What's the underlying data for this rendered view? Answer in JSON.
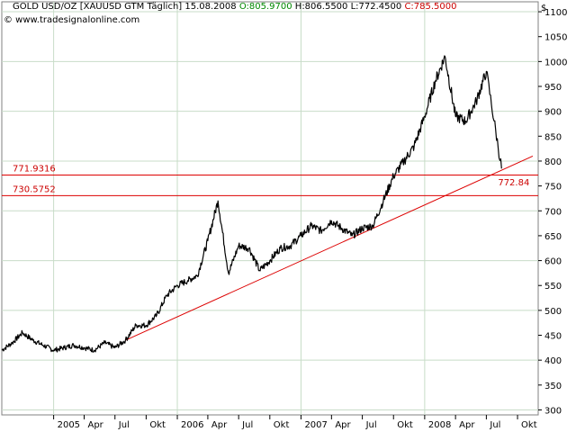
{
  "header": {
    "symbol": "GOLD USD/OZ [XAUUSD GTM  Täglich]",
    "date": "15.08.2008",
    "open": "O:805.9700",
    "high": "H:806.5500",
    "low": "L:772.4500",
    "close": "C:785.5000",
    "copyright": "© www.tradesignalonline.com",
    "currency": "$"
  },
  "colors": {
    "price": "#000000",
    "trendline": "#dd0000",
    "level_lines": "#dd0000",
    "grid": "#c8dcc8",
    "open_text": "#008800",
    "close_text": "#cc0000"
  },
  "chart_data": {
    "type": "line",
    "series": [
      {
        "x": [
          "2004-08-01",
          "2004-09-01",
          "2004-10-01",
          "2004-11-01",
          "2004-12-01",
          "2005-01-01",
          "2005-02-01",
          "2005-03-01",
          "2005-04-01",
          "2005-05-01",
          "2005-06-01",
          "2005-07-01",
          "2005-08-01",
          "2005-09-01",
          "2005-10-01",
          "2005-11-01",
          "2005-12-01",
          "2006-01-01",
          "2006-02-01",
          "2006-03-01",
          "2006-04-01",
          "2006-05-01",
          "2006-06-01",
          "2006-07-01",
          "2006-08-01",
          "2006-09-01",
          "2006-10-01",
          "2006-11-01",
          "2006-12-01",
          "2007-01-01",
          "2007-02-01",
          "2007-03-01",
          "2007-04-01",
          "2007-05-01",
          "2007-06-01",
          "2007-07-01",
          "2007-08-01",
          "2007-09-01",
          "2007-10-01",
          "2007-11-01",
          "2007-12-01",
          "2008-01-01",
          "2008-02-01",
          "2008-03-01",
          "2008-04-01",
          "2008-05-01",
          "2008-06-01",
          "2008-07-01",
          "2008-08-15"
        ],
        "y": [
          420,
          435,
          455,
          440,
          430,
          420,
          425,
          430,
          425,
          420,
          435,
          425,
          440,
          470,
          470,
          490,
          530,
          550,
          560,
          570,
          640,
          720,
          575,
          630,
          625,
          580,
          600,
          625,
          630,
          650,
          670,
          660,
          680,
          665,
          650,
          665,
          670,
          720,
          770,
          800,
          830,
          890,
          960,
          1010,
          890,
          880,
          920,
          980,
          785
        ]
      }
    ],
    "trendline": {
      "from": {
        "x": "2005-08-01",
        "y": 440
      },
      "to": {
        "x": "2008-11-15",
        "y": 810
      }
    },
    "levels": [
      {
        "label": "771.9316",
        "value": 771.9316
      },
      {
        "label": "730.5752",
        "value": 730.5752
      }
    ],
    "annotations": [
      {
        "label": "772.84",
        "x": "2008-08-15",
        "y": 772.84
      }
    ],
    "y_ticks": [
      300,
      350,
      400,
      450,
      500,
      550,
      600,
      650,
      700,
      750,
      800,
      850,
      900,
      950,
      1000,
      1050,
      1100
    ],
    "x_ticks": [
      {
        "label": "2005",
        "x": "2005-01-01"
      },
      {
        "label": "Apr",
        "x": "2005-04-01"
      },
      {
        "label": "Jul",
        "x": "2005-07-01"
      },
      {
        "label": "Okt",
        "x": "2005-10-01"
      },
      {
        "label": "2006",
        "x": "2006-01-01"
      },
      {
        "label": "Apr",
        "x": "2006-04-01"
      },
      {
        "label": "Jul",
        "x": "2006-07-01"
      },
      {
        "label": "Okt",
        "x": "2006-10-01"
      },
      {
        "label": "2007",
        "x": "2007-01-01"
      },
      {
        "label": "Apr",
        "x": "2007-04-01"
      },
      {
        "label": "Jul",
        "x": "2007-07-01"
      },
      {
        "label": "Okt",
        "x": "2007-10-01"
      },
      {
        "label": "2008",
        "x": "2008-01-01"
      },
      {
        "label": "Apr",
        "x": "2008-04-01"
      },
      {
        "label": "Jul",
        "x": "2008-07-01"
      },
      {
        "label": "Okt",
        "x": "2008-10-01"
      }
    ],
    "x_range": [
      "2004-08-01",
      "2008-12-01"
    ],
    "y_range": [
      290,
      1120
    ],
    "grid": true,
    "legend": "none"
  }
}
